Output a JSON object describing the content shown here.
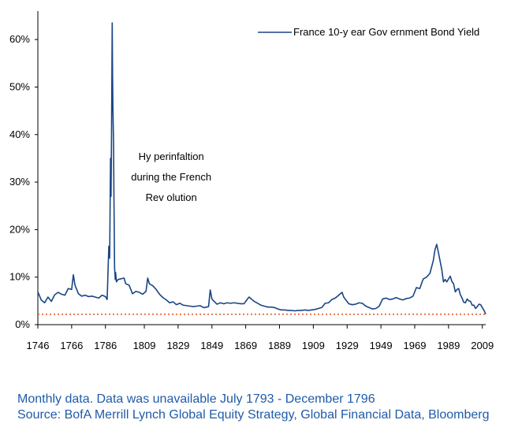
{
  "chart_data": {
    "type": "line",
    "xlabel": "",
    "ylabel": "",
    "xlim": [
      1746,
      2011
    ],
    "ylim": [
      0,
      65
    ],
    "x_ticks": [
      "1746",
      "1766",
      "1786",
      "1809",
      "1829",
      "1849",
      "1869",
      "1889",
      "1909",
      "1929",
      "1949",
      "1969",
      "1989",
      "2009"
    ],
    "y_ticks": [
      "0%",
      "10%",
      "20%",
      "30%",
      "40%",
      "50%",
      "60%"
    ],
    "legend": {
      "placement": "top-right"
    },
    "reference_line": {
      "value": 2.2,
      "style": "dotted",
      "color": "#e0531f"
    },
    "annotation": {
      "lines": [
        "Hy perinfaltion",
        "during the French",
        "Rev olution"
      ],
      "x": 1810,
      "y": 38
    },
    "series": [
      {
        "name": "France 10-y ear Gov ernment Bond Yield",
        "color": "#1a4585",
        "points": [
          [
            1746,
            6.9
          ],
          [
            1748,
            5.2
          ],
          [
            1750,
            4.6
          ],
          [
            1752,
            5.8
          ],
          [
            1754,
            4.9
          ],
          [
            1756,
            6.3
          ],
          [
            1758,
            6.8
          ],
          [
            1760,
            6.4
          ],
          [
            1762,
            6.2
          ],
          [
            1764,
            7.6
          ],
          [
            1766,
            7.4
          ],
          [
            1767,
            10.5
          ],
          [
            1768,
            8.3
          ],
          [
            1770,
            6.5
          ],
          [
            1772,
            6.0
          ],
          [
            1774,
            6.2
          ],
          [
            1776,
            5.9
          ],
          [
            1778,
            6.0
          ],
          [
            1780,
            5.8
          ],
          [
            1782,
            5.6
          ],
          [
            1784,
            6.2
          ],
          [
            1786,
            5.9
          ],
          [
            1787,
            5.3
          ],
          [
            1788,
            16.5
          ],
          [
            1788.5,
            14.0
          ],
          [
            1789,
            35.0
          ],
          [
            1789.3,
            27.0
          ],
          [
            1789.6,
            40.0
          ],
          [
            1790,
            63.5
          ],
          [
            1790.2,
            53.0
          ],
          [
            1790.4,
            46.0
          ],
          [
            1790.8,
            38.0
          ],
          [
            1791,
            28.0
          ],
          [
            1791.4,
            12.0
          ],
          [
            1791.8,
            9.5
          ],
          [
            1792,
            11.0
          ],
          [
            1792.5,
            9.0
          ],
          [
            1793.5,
            9.5
          ],
          [
            1797,
            9.8
          ],
          [
            1798,
            8.6
          ],
          [
            1800,
            8.3
          ],
          [
            1802,
            6.5
          ],
          [
            1804,
            7.0
          ],
          [
            1806,
            6.8
          ],
          [
            1808,
            6.4
          ],
          [
            1810,
            7.0
          ],
          [
            1811,
            9.8
          ],
          [
            1812,
            8.6
          ],
          [
            1814,
            8.2
          ],
          [
            1816,
            7.4
          ],
          [
            1818,
            6.4
          ],
          [
            1820,
            5.7
          ],
          [
            1822,
            5.2
          ],
          [
            1824,
            4.6
          ],
          [
            1826,
            4.8
          ],
          [
            1828,
            4.2
          ],
          [
            1830,
            4.5
          ],
          [
            1832,
            4.1
          ],
          [
            1834,
            4.0
          ],
          [
            1836,
            3.9
          ],
          [
            1838,
            3.8
          ],
          [
            1840,
            3.9
          ],
          [
            1842,
            4.0
          ],
          [
            1844,
            3.6
          ],
          [
            1846,
            3.7
          ],
          [
            1847,
            3.8
          ],
          [
            1848,
            7.3
          ],
          [
            1849,
            5.4
          ],
          [
            1850,
            5.0
          ],
          [
            1852,
            4.3
          ],
          [
            1854,
            4.6
          ],
          [
            1856,
            4.4
          ],
          [
            1858,
            4.6
          ],
          [
            1860,
            4.5
          ],
          [
            1862,
            4.6
          ],
          [
            1864,
            4.5
          ],
          [
            1866,
            4.4
          ],
          [
            1868,
            4.4
          ],
          [
            1870,
            5.4
          ],
          [
            1871,
            5.8
          ],
          [
            1872,
            5.5
          ],
          [
            1874,
            4.9
          ],
          [
            1876,
            4.5
          ],
          [
            1878,
            4.1
          ],
          [
            1880,
            3.9
          ],
          [
            1882,
            3.7
          ],
          [
            1884,
            3.7
          ],
          [
            1886,
            3.6
          ],
          [
            1888,
            3.3
          ],
          [
            1890,
            3.1
          ],
          [
            1892,
            3.1
          ],
          [
            1894,
            3.0
          ],
          [
            1896,
            3.0
          ],
          [
            1898,
            2.9
          ],
          [
            1900,
            3.0
          ],
          [
            1902,
            3.0
          ],
          [
            1904,
            3.1
          ],
          [
            1906,
            3.0
          ],
          [
            1908,
            3.1
          ],
          [
            1910,
            3.2
          ],
          [
            1912,
            3.4
          ],
          [
            1914,
            3.6
          ],
          [
            1916,
            4.5
          ],
          [
            1918,
            4.6
          ],
          [
            1920,
            5.3
          ],
          [
            1922,
            5.6
          ],
          [
            1924,
            6.2
          ],
          [
            1926,
            6.8
          ],
          [
            1927,
            5.8
          ],
          [
            1928,
            5.3
          ],
          [
            1930,
            4.4
          ],
          [
            1932,
            4.2
          ],
          [
            1934,
            4.3
          ],
          [
            1936,
            4.6
          ],
          [
            1938,
            4.5
          ],
          [
            1940,
            3.9
          ],
          [
            1942,
            3.6
          ],
          [
            1944,
            3.3
          ],
          [
            1946,
            3.4
          ],
          [
            1948,
            3.9
          ],
          [
            1950,
            5.4
          ],
          [
            1952,
            5.6
          ],
          [
            1954,
            5.3
          ],
          [
            1956,
            5.4
          ],
          [
            1958,
            5.7
          ],
          [
            1960,
            5.4
          ],
          [
            1962,
            5.2
          ],
          [
            1964,
            5.5
          ],
          [
            1966,
            5.6
          ],
          [
            1968,
            6.0
          ],
          [
            1970,
            7.8
          ],
          [
            1972,
            7.6
          ],
          [
            1974,
            9.6
          ],
          [
            1976,
            10.0
          ],
          [
            1978,
            10.8
          ],
          [
            1980,
            13.5
          ],
          [
            1981,
            15.8
          ],
          [
            1982,
            16.9
          ],
          [
            1983,
            15.2
          ],
          [
            1984,
            13.4
          ],
          [
            1985,
            11.6
          ],
          [
            1986,
            9.0
          ],
          [
            1987,
            9.5
          ],
          [
            1988,
            9.0
          ],
          [
            1990,
            10.2
          ],
          [
            1991,
            9.1
          ],
          [
            1992,
            8.6
          ],
          [
            1993,
            6.9
          ],
          [
            1994,
            7.4
          ],
          [
            1995,
            7.6
          ],
          [
            1996,
            6.3
          ],
          [
            1997,
            5.6
          ],
          [
            1998,
            4.7
          ],
          [
            1999,
            4.6
          ],
          [
            2000,
            5.4
          ],
          [
            2001,
            5.0
          ],
          [
            2002,
            4.9
          ],
          [
            2003,
            4.1
          ],
          [
            2004,
            4.1
          ],
          [
            2005,
            3.4
          ],
          [
            2006,
            3.8
          ],
          [
            2007,
            4.3
          ],
          [
            2008,
            4.2
          ],
          [
            2009,
            3.6
          ],
          [
            2010,
            3.0
          ],
          [
            2011,
            2.2
          ]
        ]
      }
    ]
  },
  "footnote": {
    "line1": "Monthly data. Data was unavailable July 1793 - December 1796",
    "line2": "Source: BofA Merrill Lynch Global Equity Strategy, Global Financial Data, Bloomberg"
  }
}
